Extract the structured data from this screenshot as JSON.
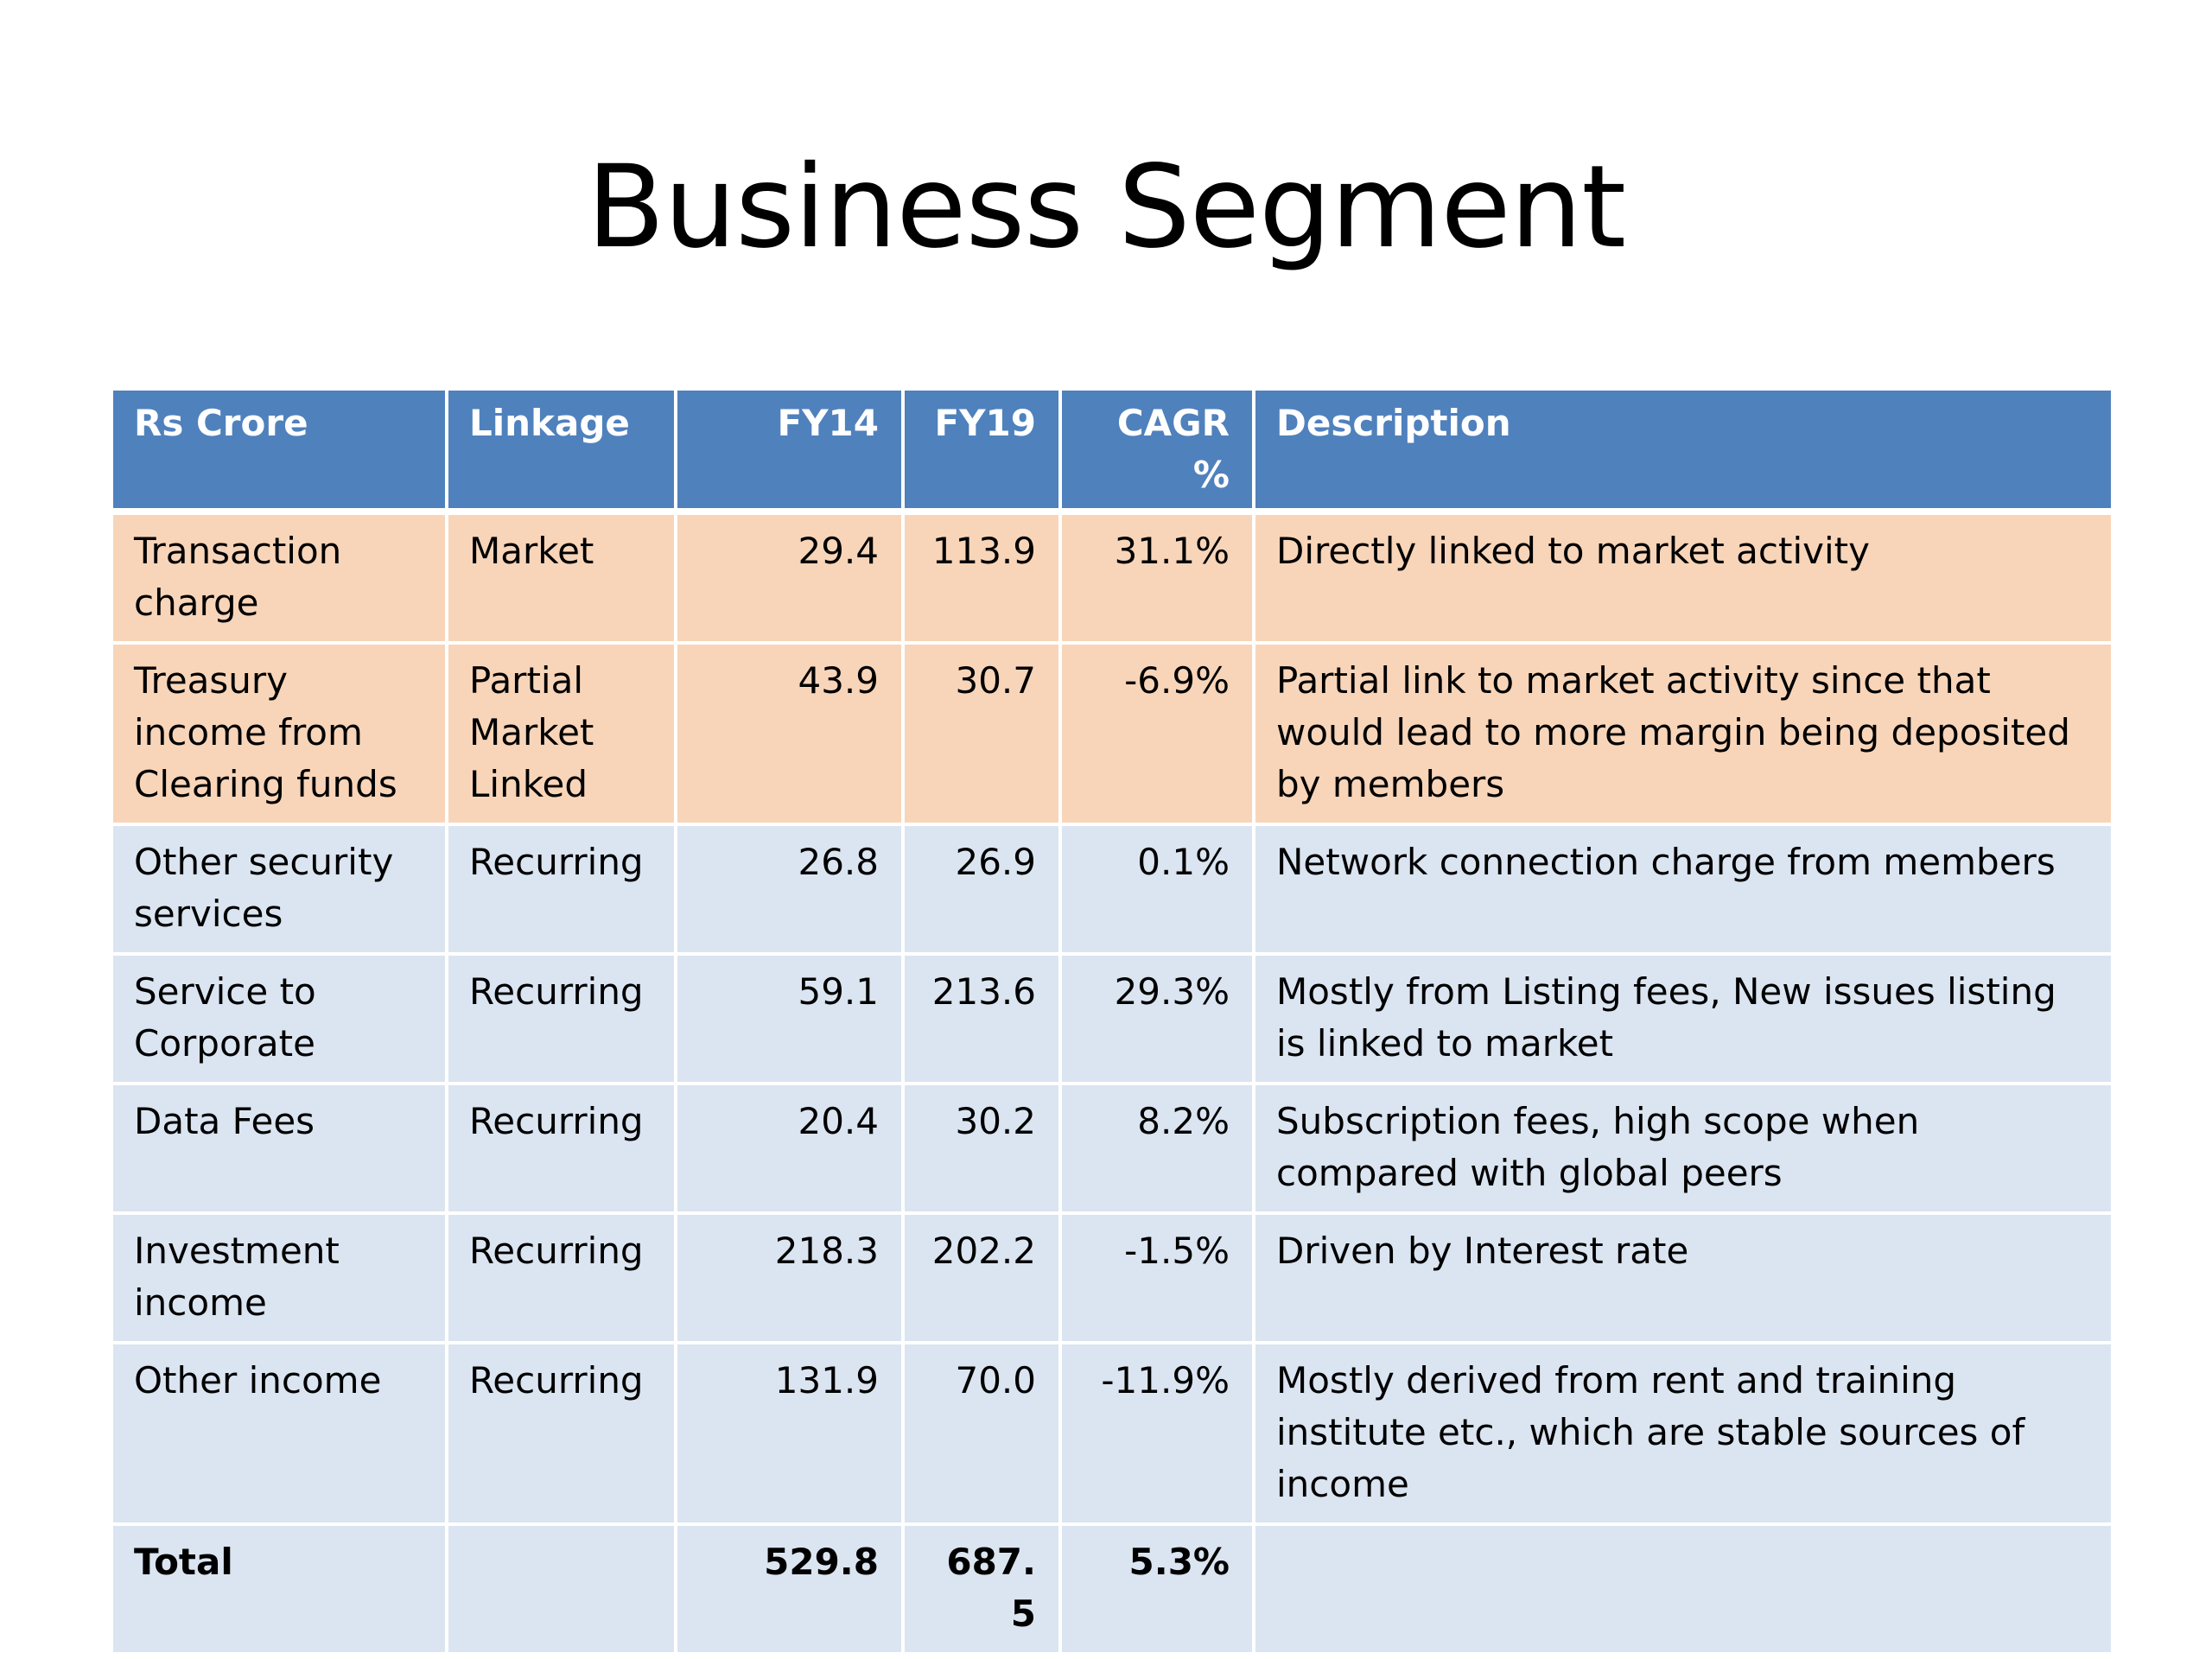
{
  "title": "Business Segment",
  "table": {
    "headers": {
      "segment": "Rs Crore",
      "linkage": "Linkage",
      "fy14": "FY14",
      "fy19": "FY19",
      "cagr": "CAGR%",
      "description": "Description"
    },
    "rows": [
      {
        "segment": "Transaction charge",
        "linkage": "Market",
        "fy14": "29.4",
        "fy19": "113.9",
        "cagr": "31.1%",
        "description": "Directly linked to market activity"
      },
      {
        "segment": "Treasury income from Clearing funds",
        "linkage": "Partial Market Linked",
        "fy14": "43.9",
        "fy19": "30.7",
        "cagr": "-6.9%",
        "description": "Partial link to market activity since that would lead to more margin being deposited by members"
      },
      {
        "segment": "Other security services",
        "linkage": "Recurring",
        "fy14": "26.8",
        "fy19": "26.9",
        "cagr": "0.1%",
        "description": "Network connection charge from members"
      },
      {
        "segment": "Service to Corporate",
        "linkage": "Recurring",
        "fy14": "59.1",
        "fy19": "213.6",
        "cagr": "29.3%",
        "description": "Mostly from Listing fees, New issues listing is linked to market"
      },
      {
        "segment": "Data Fees",
        "linkage": "Recurring",
        "fy14": "20.4",
        "fy19": "30.2",
        "cagr": "8.2%",
        "description": "Subscription fees, high scope when compared with global peers"
      },
      {
        "segment": "Investment income",
        "linkage": "Recurring",
        "fy14": "218.3",
        "fy19": "202.2",
        "cagr": "-1.5%",
        "description": "Driven by Interest rate"
      },
      {
        "segment": "Other income",
        "linkage": "Recurring",
        "fy14": "131.9",
        "fy19": "70.0",
        "cagr": "-11.9%",
        "description": "Mostly derived from rent and training institute etc., which are stable sources of income"
      }
    ],
    "total": {
      "segment": "Total",
      "linkage": "",
      "fy14": "529.8",
      "fy19": "687.5",
      "cagr": "5.3%",
      "description": ""
    }
  },
  "colors": {
    "header_bg": "#4f81bd",
    "market_row_bg": "#f8d5b9",
    "recurring_row_bg": "#dbe5f1"
  }
}
